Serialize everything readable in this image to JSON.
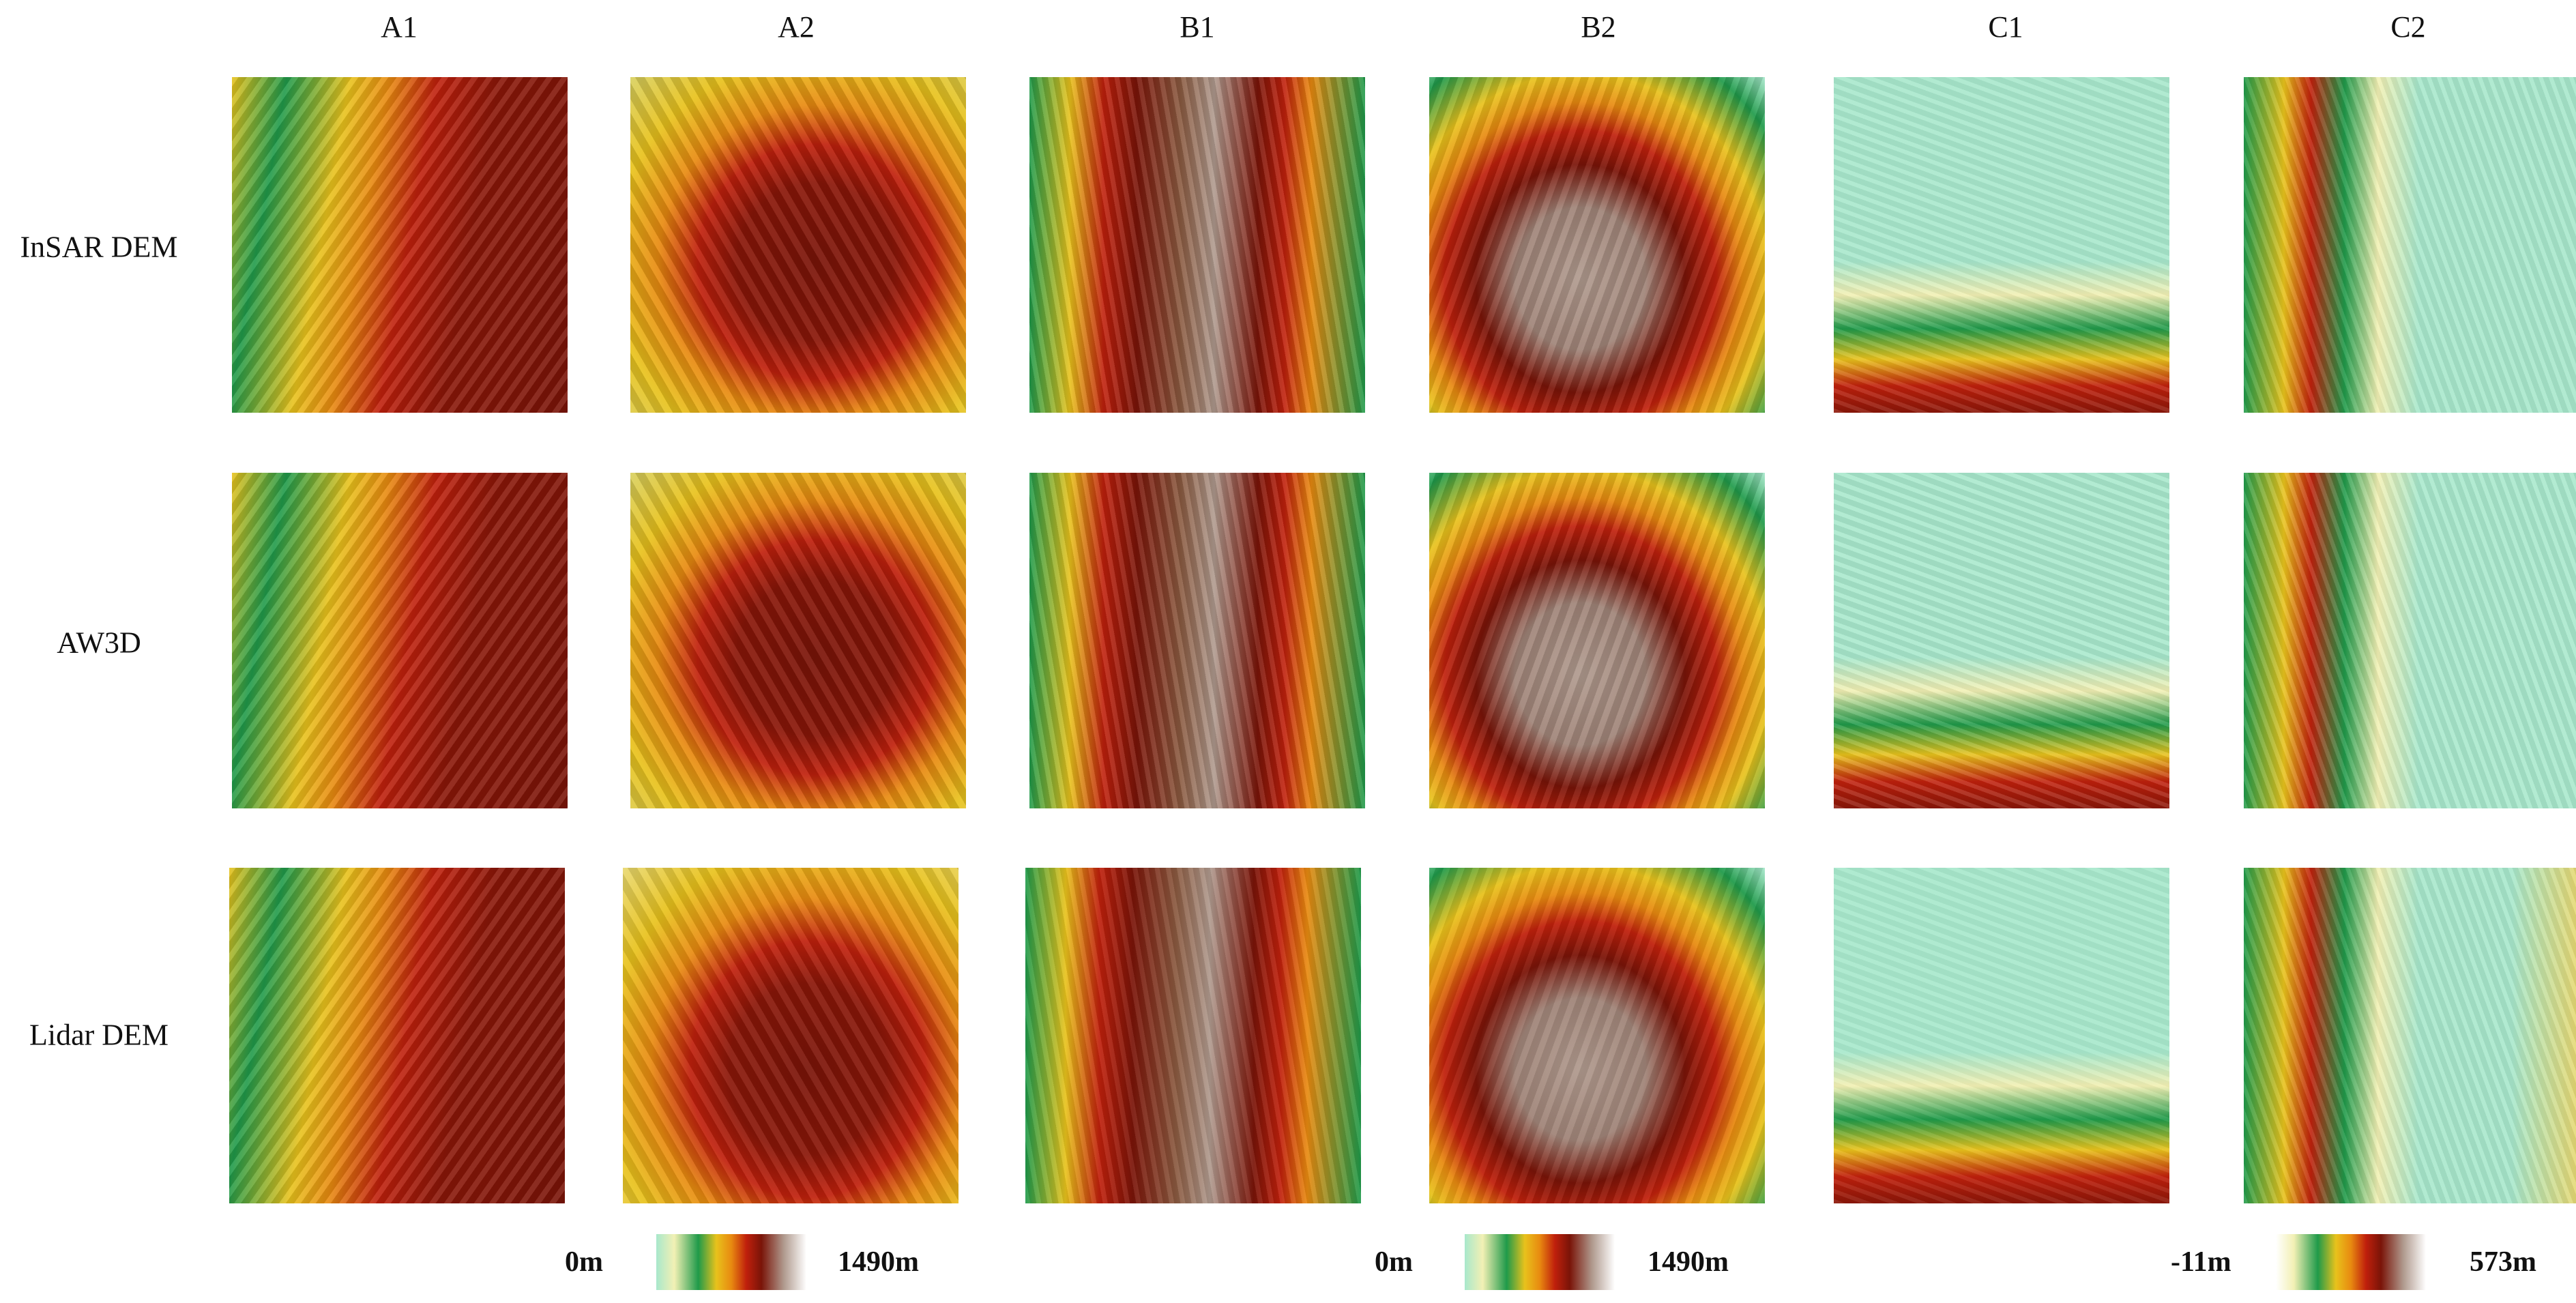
{
  "columns": [
    "A1",
    "A2",
    "B1",
    "B2",
    "C1",
    "C2"
  ],
  "rows": [
    "InSAR DEM",
    "AW3D",
    "Lidar DEM"
  ],
  "legends": [
    {
      "min": "0m",
      "max": "1490m"
    },
    {
      "min": "0m",
      "max": "1490m"
    },
    {
      "min": "-11m",
      "max": "573m"
    }
  ],
  "colors": {
    "lowland": "#a8e8cc",
    "pale-yellow": "#f2f0b4",
    "green": "#1f9a4a",
    "dark-green": "#0f7a3a",
    "yellow": "#e8c21c",
    "orange": "#e88a10",
    "red": "#c0200c",
    "dark-red": "#7a1408",
    "brown": "#8a5a40",
    "grey-brown": "#b09a8e",
    "white": "#f4f2f2"
  }
}
